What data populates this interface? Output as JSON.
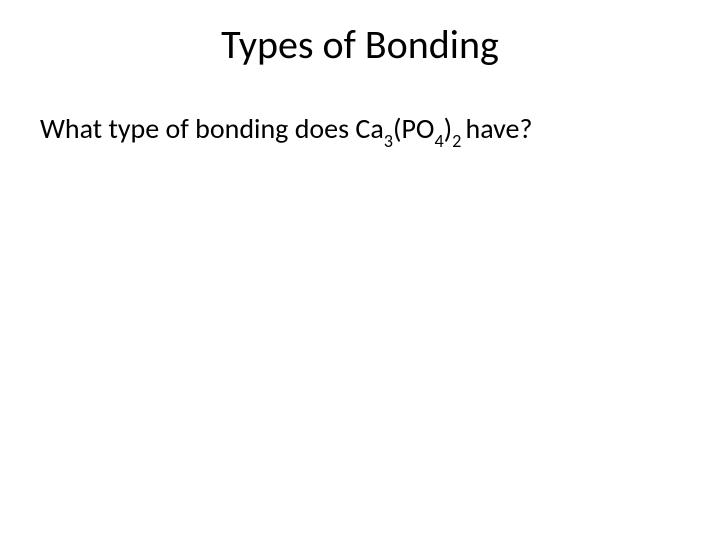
{
  "slide": {
    "title": "Types of Bonding",
    "question_prefix": "What type of bonding does Ca",
    "sub1": "3",
    "mid1": "(PO",
    "sub2": "4",
    "mid2": ")",
    "sub3": "2 ",
    "suffix": "have?",
    "background_color": "#ffffff",
    "text_color": "#000000",
    "title_fontsize": 40,
    "body_fontsize": 28
  }
}
